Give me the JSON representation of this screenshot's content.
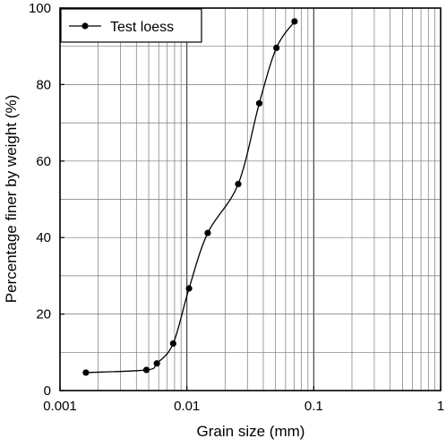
{
  "chart_data": {
    "type": "line",
    "xlabel": "Grain size (mm)",
    "ylabel": "Percentage finer by weight (%)",
    "x_scale": "log",
    "xlim": [
      0.001,
      1
    ],
    "ylim": [
      0,
      100
    ],
    "x_ticks": [
      "0.001",
      "0.01",
      "0.1",
      "1"
    ],
    "y_ticks": [
      "0",
      "20",
      "40",
      "60",
      "80",
      "100"
    ],
    "grid": true,
    "legend_position": "top-left",
    "series": [
      {
        "name": "Test loess",
        "color": "#000000",
        "smooth": true,
        "marker": "circle",
        "x": [
          0.0016,
          0.0048,
          0.0058,
          0.0078,
          0.0104,
          0.0146,
          0.0254,
          0.0372,
          0.0508,
          0.0706
        ],
        "y": [
          4.7,
          5.4,
          7.1,
          12.3,
          26.7,
          41.2,
          54.0,
          75.1,
          89.6,
          96.5
        ]
      }
    ]
  }
}
